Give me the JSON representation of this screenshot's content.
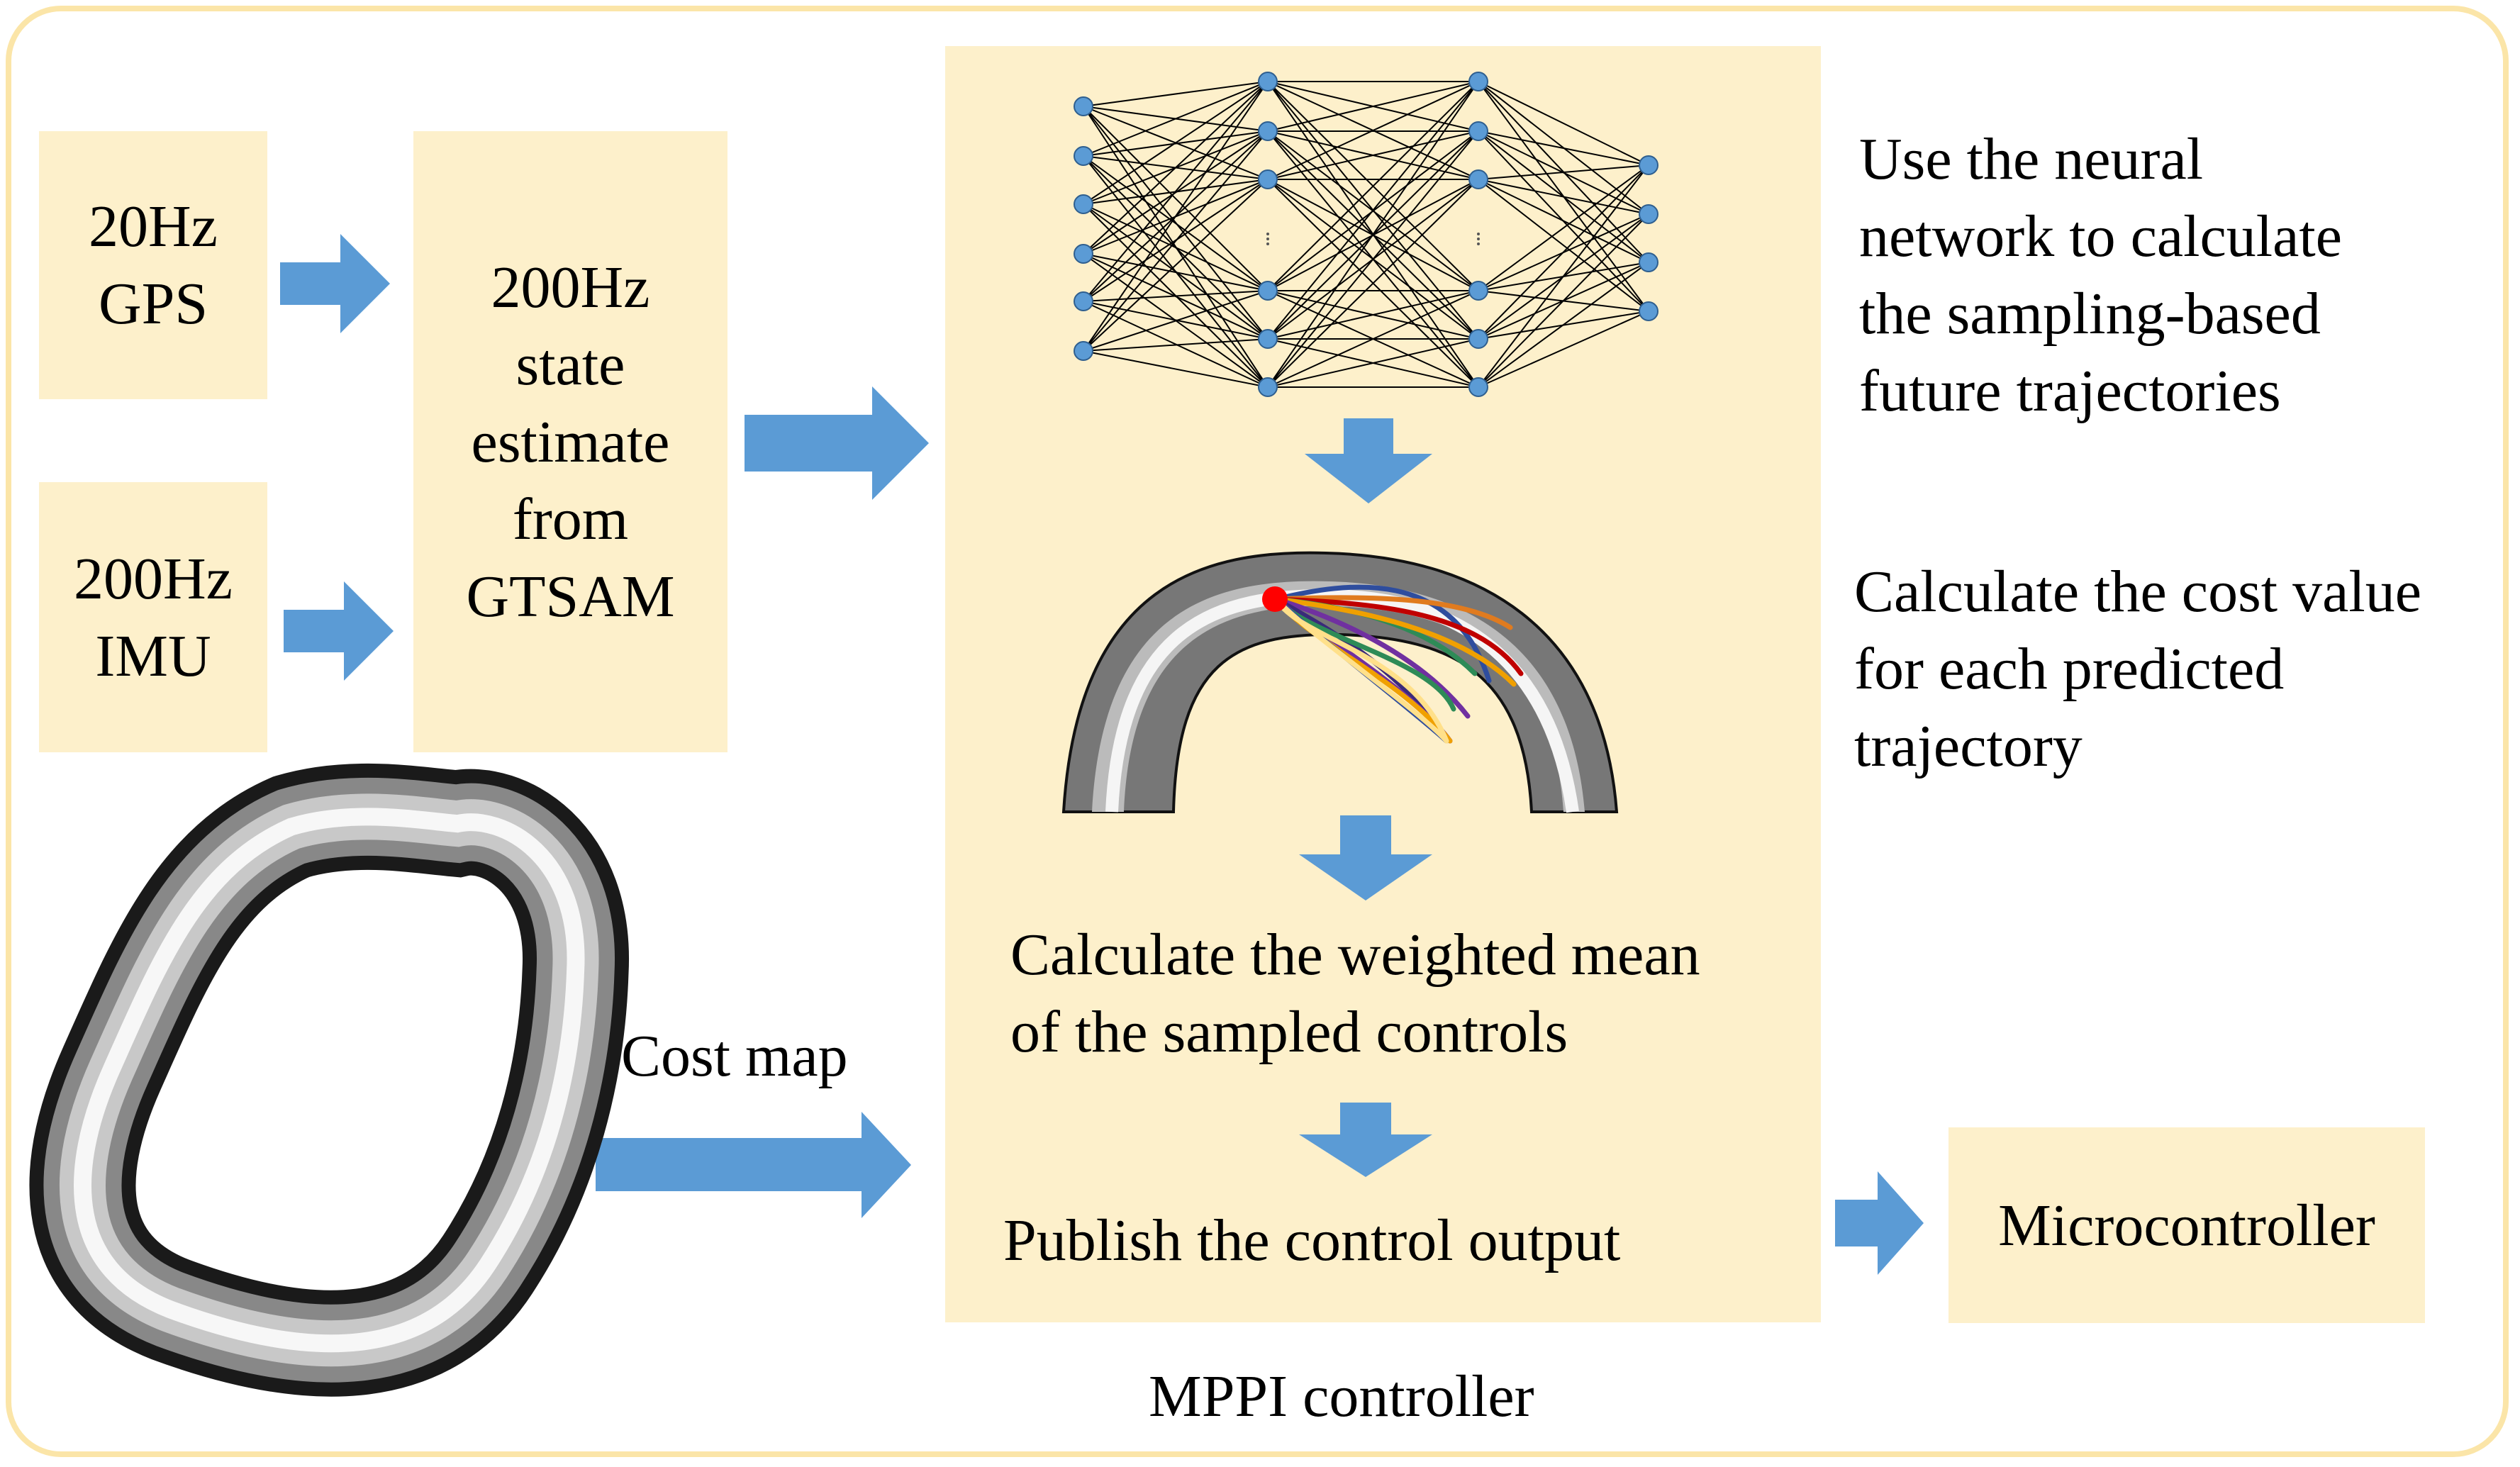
{
  "inputs": {
    "gps": {
      "line1": "20Hz",
      "line2": "GPS"
    },
    "imu": {
      "line1": "200Hz",
      "line2": "IMU"
    }
  },
  "state_estimate": {
    "line1": "200Hz",
    "line2": "state",
    "line3": "estimate",
    "line4": "from",
    "line5": "GTSAM"
  },
  "cost_map_label": "Cost map",
  "mppi": {
    "caption": "MPPI controller",
    "weighted_mean": {
      "line1": "Calculate the weighted mean",
      "line2": "of the sampled controls"
    },
    "publish": "Publish the control output"
  },
  "notes": {
    "neural_network": {
      "line1": "Use the neural",
      "line2": "network to calculate",
      "line3": "the sampling-based",
      "line4": "future trajectories"
    },
    "cost_value": {
      "line1": "Calculate the cost value",
      "line2": "for each predicted",
      "line3": "trajectory"
    }
  },
  "microcontroller": "Microcontroller",
  "colors": {
    "box_fill": "#FDF0CB",
    "frame_border": "#FBE5A8",
    "arrow": "#5B9BD5",
    "node_fill": "#5B9BD5",
    "start_point": "#FF0000",
    "trajectories": [
      "#2E4D9E",
      "#E07B1F",
      "#C00000",
      "#2E8B57",
      "#F0A000",
      "#7030A0",
      "#FFE08A"
    ]
  },
  "icons": {
    "arrow": "block-arrow-right-icon / block-arrow-down-icon",
    "network": "neural-network-icon",
    "track": "track-cost-map-icon"
  }
}
